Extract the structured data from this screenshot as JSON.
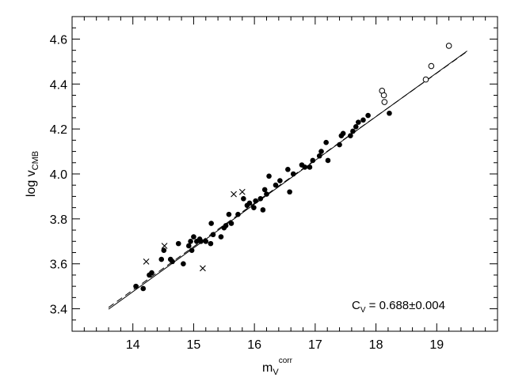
{
  "chart_data": {
    "type": "scatter",
    "title": "",
    "xlabel": {
      "base": "m",
      "sub": "V",
      "sup": "corr"
    },
    "ylabel": {
      "base": "log v",
      "sub": "CMB"
    },
    "xlim": [
      13.0,
      20.0
    ],
    "ylim": [
      3.3,
      4.7
    ],
    "x_ticks": [
      14,
      15,
      16,
      17,
      18,
      19
    ],
    "x_tick_labels": [
      "14",
      "15",
      "16",
      "17",
      "18",
      "19"
    ],
    "y_ticks": [
      3.4,
      3.6,
      3.8,
      4.0,
      4.2,
      4.4,
      4.6
    ],
    "y_tick_labels": [
      "3.4",
      "3.6",
      "3.8",
      "4.0",
      "4.2",
      "4.4",
      "4.6"
    ],
    "grid": false,
    "annotation": {
      "base": "C",
      "sub": "V",
      "text": " = 0.688±0.004"
    },
    "series": [
      {
        "marker": "filled-circle",
        "points": [
          [
            14.05,
            3.5
          ],
          [
            14.17,
            3.49
          ],
          [
            14.27,
            3.55
          ],
          [
            14.31,
            3.56
          ],
          [
            14.47,
            3.62
          ],
          [
            14.51,
            3.66
          ],
          [
            14.62,
            3.62
          ],
          [
            14.65,
            3.61
          ],
          [
            14.75,
            3.69
          ],
          [
            14.83,
            3.6
          ],
          [
            14.92,
            3.68
          ],
          [
            14.95,
            3.7
          ],
          [
            14.97,
            3.66
          ],
          [
            15.0,
            3.72
          ],
          [
            15.05,
            3.7
          ],
          [
            15.1,
            3.71
          ],
          [
            15.12,
            3.7
          ],
          [
            15.2,
            3.7
          ],
          [
            15.28,
            3.69
          ],
          [
            15.29,
            3.78
          ],
          [
            15.32,
            3.73
          ],
          [
            15.45,
            3.72
          ],
          [
            15.5,
            3.76
          ],
          [
            15.53,
            3.77
          ],
          [
            15.58,
            3.82
          ],
          [
            15.62,
            3.78
          ],
          [
            15.73,
            3.82
          ],
          [
            15.82,
            3.89
          ],
          [
            15.88,
            3.86
          ],
          [
            15.92,
            3.87
          ],
          [
            15.99,
            3.85
          ],
          [
            16.02,
            3.88
          ],
          [
            16.1,
            3.89
          ],
          [
            16.14,
            3.84
          ],
          [
            16.17,
            3.93
          ],
          [
            16.2,
            3.91
          ],
          [
            16.24,
            3.99
          ],
          [
            16.35,
            3.95
          ],
          [
            16.42,
            3.97
          ],
          [
            16.55,
            4.02
          ],
          [
            16.58,
            3.92
          ],
          [
            16.64,
            4.0
          ],
          [
            16.78,
            4.04
          ],
          [
            16.83,
            4.03
          ],
          [
            16.91,
            4.03
          ],
          [
            16.96,
            4.06
          ],
          [
            17.07,
            4.08
          ],
          [
            17.1,
            4.1
          ],
          [
            17.18,
            4.14
          ],
          [
            17.21,
            4.06
          ],
          [
            17.4,
            4.13
          ],
          [
            17.43,
            4.17
          ],
          [
            17.46,
            4.18
          ],
          [
            17.58,
            4.17
          ],
          [
            17.62,
            4.19
          ],
          [
            17.67,
            4.21
          ],
          [
            17.71,
            4.23
          ],
          [
            17.79,
            4.24
          ],
          [
            17.87,
            4.26
          ],
          [
            18.22,
            4.27
          ]
        ]
      },
      {
        "marker": "open-circle",
        "points": [
          [
            18.1,
            4.37
          ],
          [
            18.13,
            4.35
          ],
          [
            18.14,
            4.32
          ],
          [
            18.82,
            4.42
          ],
          [
            18.91,
            4.48
          ],
          [
            19.2,
            4.57
          ]
        ]
      },
      {
        "marker": "cross",
        "points": [
          [
            14.22,
            3.61
          ],
          [
            14.52,
            3.68
          ],
          [
            15.15,
            3.58
          ],
          [
            15.66,
            3.91
          ],
          [
            15.8,
            3.92
          ]
        ]
      }
    ],
    "lines": [
      {
        "style": "solid",
        "x": [
          13.6,
          19.5
        ],
        "y": [
          3.398,
          4.547
        ]
      },
      {
        "style": "dashed",
        "x": [
          13.6,
          19.5
        ],
        "y": [
          3.406,
          4.545
        ]
      }
    ]
  }
}
